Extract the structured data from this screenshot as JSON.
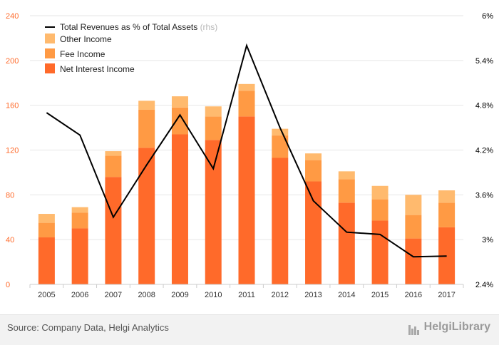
{
  "chart_data": {
    "type": "bar",
    "stacked": true,
    "categories": [
      "2005",
      "2006",
      "2007",
      "2008",
      "2009",
      "2010",
      "2011",
      "2012",
      "2013",
      "2014",
      "2015",
      "2016",
      "2017"
    ],
    "series": [
      {
        "name": "Net Interest Income",
        "color": "#ff6a2a",
        "values": [
          42,
          50,
          96,
          122,
          134,
          129,
          150,
          113,
          92,
          73,
          57,
          41,
          51
        ]
      },
      {
        "name": "Fee Income",
        "color": "#ff9a44",
        "values": [
          13,
          14,
          19,
          34,
          24,
          21,
          23,
          20,
          19,
          21,
          19,
          21,
          22
        ]
      },
      {
        "name": "Other Income",
        "color": "#ffba6e",
        "values": [
          8,
          5,
          4,
          8,
          10,
          9,
          6,
          6,
          6,
          7,
          12,
          18,
          11
        ]
      }
    ],
    "line_series": {
      "name": "Total Revenues as % of Total Assets",
      "name_suffix": "(rhs)",
      "color": "#000000",
      "values": [
        4.7,
        4.4,
        3.3,
        4.0,
        4.67,
        3.95,
        5.6,
        4.5,
        3.52,
        3.1,
        3.07,
        2.77,
        2.78
      ]
    },
    "y_left": {
      "min": 0,
      "max": 240,
      "ticks": [
        0,
        40,
        80,
        120,
        160,
        200,
        240
      ],
      "tick_color": "#ff6a2a"
    },
    "y_right": {
      "min": 2.4,
      "max": 6.0,
      "ticks": [
        "2.4%",
        "3%",
        "3.6%",
        "4.2%",
        "4.8%",
        "5.4%",
        "6%"
      ]
    },
    "legend": {
      "position": "top-left",
      "order": [
        "Total Revenues as % of Total Assets",
        "Other Income",
        "Fee Income",
        "Net Interest Income"
      ]
    },
    "grid": true
  },
  "footer": {
    "source": "Source: Company Data, Helgi Analytics",
    "brand": "HelgiLibrary"
  }
}
